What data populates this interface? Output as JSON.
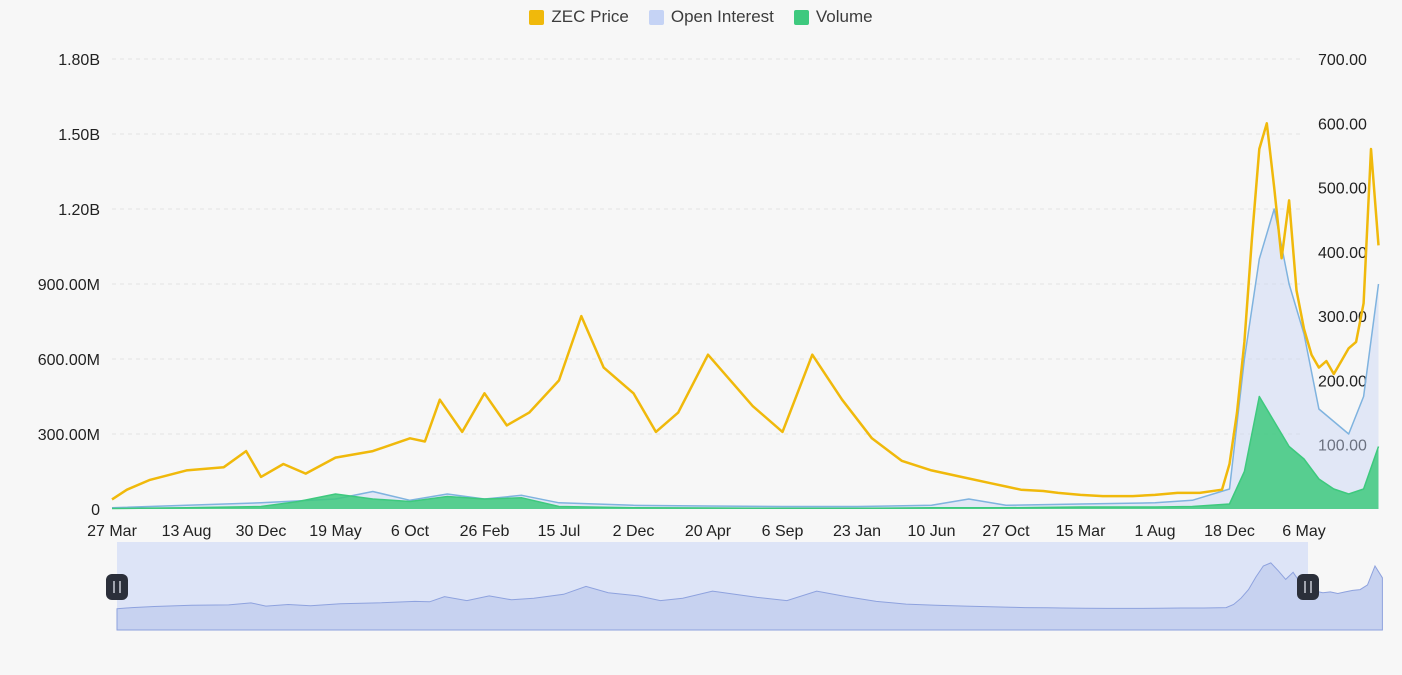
{
  "chart_data": {
    "type": "area",
    "legend": [
      {
        "name": "ZEC Price",
        "color": "#f0b90b"
      },
      {
        "name": "Open Interest",
        "color": "#c5d3f5"
      },
      {
        "name": "Volume",
        "color": "#3ec97e"
      }
    ],
    "legend_position": "top-center",
    "x_tick_labels": [
      "27 Mar",
      "13 Aug",
      "30 Dec",
      "19 May",
      "6 Oct",
      "26 Feb",
      "15 Jul",
      "2 Dec",
      "20 Apr",
      "6 Sep",
      "23 Jan",
      "10 Jun",
      "27 Oct",
      "15 Mar",
      "1 Aug",
      "18 Dec",
      "6 May"
    ],
    "y_left": {
      "ticks": [
        "0",
        "300.00M",
        "600.00M",
        "900.00M",
        "1.20B",
        "1.50B",
        "1.80B"
      ],
      "range": [
        0,
        1800000000
      ]
    },
    "y_right": {
      "ticks": [
        "100.00",
        "200.00",
        "300.00",
        "400.00",
        "500.00",
        "600.00",
        "700.00"
      ],
      "range": [
        0,
        700
      ]
    },
    "grid": "horizontal dashed",
    "series": [
      {
        "name": "ZEC Price",
        "axis": "right",
        "x": [
          0,
          0.2,
          0.5,
          1,
          1.5,
          1.8,
          2,
          2.3,
          2.6,
          3,
          3.5,
          4,
          4.2,
          4.4,
          4.7,
          5,
          5.3,
          5.6,
          6,
          6.3,
          6.6,
          7,
          7.3,
          7.6,
          8,
          8.3,
          8.6,
          9,
          9.4,
          9.8,
          10.2,
          10.6,
          11,
          11.4,
          11.8,
          12,
          12.2,
          12.5,
          12.7,
          13,
          13.3,
          13.7,
          14,
          14.3,
          14.6,
          14.9,
          15,
          15.1,
          15.2,
          15.3,
          15.4,
          15.5,
          15.6,
          15.7,
          15.8,
          15.9,
          16,
          16.1,
          16.2,
          16.3,
          16.4,
          16.5,
          16.6,
          16.7,
          16.8,
          16.9,
          17
        ],
        "y": [
          15,
          30,
          45,
          60,
          65,
          90,
          50,
          70,
          55,
          80,
          90,
          110,
          105,
          170,
          120,
          180,
          130,
          150,
          200,
          300,
          220,
          180,
          120,
          150,
          240,
          200,
          160,
          120,
          240,
          170,
          110,
          75,
          60,
          50,
          40,
          35,
          30,
          28,
          25,
          22,
          20,
          20,
          22,
          25,
          25,
          30,
          70,
          150,
          260,
          420,
          560,
          600,
          500,
          390,
          480,
          340,
          280,
          240,
          220,
          230,
          210,
          230,
          250,
          260,
          320,
          560,
          410
        ],
        "unit": "price (right axis)"
      },
      {
        "name": "Open Interest",
        "axis": "left",
        "x": [
          0,
          1,
          2,
          3,
          3.5,
          4,
          4.5,
          5,
          5.5,
          6,
          7,
          8,
          9,
          10,
          11,
          11.5,
          12,
          13,
          14,
          14.5,
          15,
          15.2,
          15.4,
          15.6,
          15.8,
          16,
          16.2,
          16.4,
          16.6,
          16.8,
          17
        ],
        "y": [
          5000000,
          15000000,
          25000000,
          40000000,
          70000000,
          35000000,
          60000000,
          40000000,
          55000000,
          25000000,
          15000000,
          12000000,
          10000000,
          10000000,
          15000000,
          40000000,
          15000000,
          20000000,
          25000000,
          35000000,
          80000000,
          600000000,
          1000000000,
          1200000000,
          900000000,
          700000000,
          400000000,
          350000000,
          300000000,
          450000000,
          900000000
        ]
      },
      {
        "name": "Volume",
        "axis": "left",
        "x": [
          0,
          1,
          2,
          2.5,
          3,
          3.5,
          4,
          4.5,
          5,
          5.5,
          6,
          7,
          8,
          9,
          10,
          11,
          12,
          13,
          14,
          14.5,
          15,
          15.2,
          15.4,
          15.6,
          15.8,
          16,
          16.2,
          16.4,
          16.6,
          16.8,
          17
        ],
        "y": [
          2000000,
          5000000,
          10000000,
          30000000,
          60000000,
          40000000,
          30000000,
          50000000,
          40000000,
          45000000,
          10000000,
          5000000,
          4000000,
          3000000,
          3000000,
          5000000,
          5000000,
          8000000,
          8000000,
          10000000,
          20000000,
          150000000,
          450000000,
          350000000,
          250000000,
          200000000,
          120000000,
          80000000,
          60000000,
          80000000,
          250000000
        ]
      }
    ]
  },
  "navigator": {
    "start": 0,
    "end": 1
  }
}
